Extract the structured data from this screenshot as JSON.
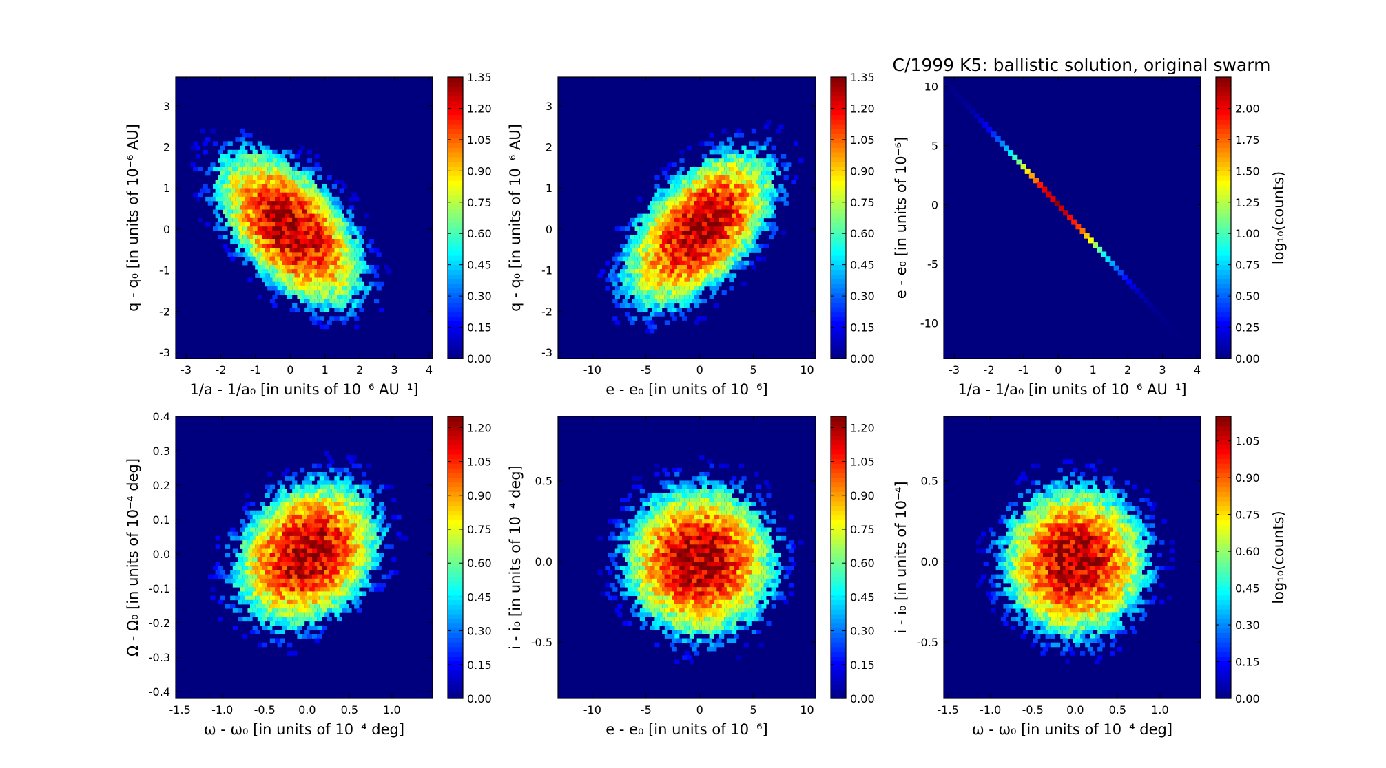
{
  "figure": {
    "title": "C/1999 K5: ballistic solution, original swarm"
  },
  "colormap": [
    "#00007f",
    "#0000ff",
    "#007fff",
    "#00ffff",
    "#7fff7f",
    "#ffff00",
    "#ff7f00",
    "#ff0000",
    "#7f0000"
  ],
  "background_color": "#00007f",
  "chart_data": [
    {
      "type": "heatmap",
      "title": "",
      "xlabel": "1/a - 1/a₀ [in units of 10⁻⁶ AU⁻¹]",
      "ylabel": "q - q₀ [in units of 10⁻⁶ AU]",
      "xlim": [
        -3.3,
        4.1
      ],
      "ylim": [
        -3.15,
        3.7
      ],
      "xticks": [
        -3,
        -2,
        -1,
        0,
        1,
        2,
        3,
        4
      ],
      "yticks": [
        -3,
        -2,
        -1,
        0,
        1,
        2,
        3
      ],
      "distribution": {
        "mean": [
          0.0,
          0.0
        ],
        "std": [
          1.0,
          0.9
        ],
        "correlation": -0.55,
        "peak_log10_counts": 1.35
      },
      "colorbar": {
        "range": [
          0.0,
          1.35
        ],
        "ticks": [
          "0.00",
          "0.15",
          "0.30",
          "0.45",
          "0.60",
          "0.75",
          "0.90",
          "1.05",
          "1.20",
          "1.35"
        ],
        "label": ""
      }
    },
    {
      "type": "heatmap",
      "title": "",
      "xlabel": "e - e₀ [in units of 10⁻⁶]",
      "ylabel": "q - q₀ [in units of 10⁻⁶ AU]",
      "xlim": [
        -13.2,
        10.8
      ],
      "ylim": [
        -3.15,
        3.7
      ],
      "xticks": [
        -10,
        -5,
        0,
        5,
        10
      ],
      "yticks": [
        -3,
        -2,
        -1,
        0,
        1,
        2,
        3
      ],
      "distribution": {
        "mean": [
          0.0,
          0.0
        ],
        "std": [
          3.3,
          0.9
        ],
        "correlation": 0.55,
        "peak_log10_counts": 1.35
      },
      "colorbar": {
        "range": [
          0.0,
          1.35
        ],
        "ticks": [
          "0.00",
          "0.15",
          "0.30",
          "0.45",
          "0.60",
          "0.75",
          "0.90",
          "1.05",
          "1.20",
          "1.35"
        ],
        "label": ""
      }
    },
    {
      "type": "heatmap",
      "title": "",
      "xlabel": "1/a - 1/a₀ [in units of 10⁻⁶ AU⁻¹]",
      "ylabel": "e - e₀ [in units of 10⁻⁶]",
      "xlim": [
        -3.3,
        4.1
      ],
      "ylim": [
        -13.0,
        10.8
      ],
      "xticks": [
        -3,
        -2,
        -1,
        0,
        1,
        2,
        3,
        4
      ],
      "yticks": [
        -10,
        -5,
        0,
        5,
        10
      ],
      "distribution": {
        "mean": [
          0.0,
          0.0
        ],
        "std": [
          1.0,
          3.2
        ],
        "correlation": -1.0,
        "line": {
          "slope": -3.2,
          "from_x": -3.2,
          "to_x": 3.5
        },
        "peak_log10_counts": 2.2
      },
      "colorbar": {
        "range": [
          0.0,
          2.25
        ],
        "ticks": [
          "0.00",
          "0.25",
          "0.50",
          "0.75",
          "1.00",
          "1.25",
          "1.50",
          "1.75",
          "2.00"
        ],
        "label": "log₁₀(counts)"
      }
    },
    {
      "type": "heatmap",
      "title": "",
      "xlabel": "ω - ω₀ [in units of 10⁻⁴ deg]",
      "ylabel": "Ω - Ω₀ [in units of 10⁻⁴ deg]",
      "xlim": [
        -1.55,
        1.48
      ],
      "ylim": [
        -0.42,
        0.4
      ],
      "xticks": [
        -1.5,
        -1.0,
        -0.5,
        0.0,
        0.5,
        1.0
      ],
      "yticks": [
        -0.4,
        -0.3,
        -0.2,
        -0.1,
        0.0,
        0.1,
        0.2,
        0.3,
        0.4
      ],
      "distribution": {
        "mean": [
          0.0,
          0.0
        ],
        "std": [
          0.4,
          0.1
        ],
        "correlation": 0.25,
        "peak_log10_counts": 1.25
      },
      "colorbar": {
        "range": [
          0.0,
          1.25
        ],
        "ticks": [
          "0.00",
          "0.15",
          "0.30",
          "0.45",
          "0.60",
          "0.75",
          "0.90",
          "1.05",
          "1.20"
        ],
        "label": ""
      }
    },
    {
      "type": "heatmap",
      "title": "",
      "xlabel": "e - e₀ [in units of 10⁻⁶]",
      "ylabel": "i - i₀ [in units of 10⁻⁴ deg]",
      "xlim": [
        -13.2,
        10.8
      ],
      "ylim": [
        -0.85,
        0.9
      ],
      "xticks": [
        -10,
        -5,
        0,
        5,
        10
      ],
      "yticks": [
        -0.5,
        0.0,
        0.5
      ],
      "distribution": {
        "mean": [
          0.0,
          0.0
        ],
        "std": [
          3.3,
          0.22
        ],
        "correlation": 0.0,
        "peak_log10_counts": 1.25
      },
      "colorbar": {
        "range": [
          0.0,
          1.25
        ],
        "ticks": [
          "0.00",
          "0.15",
          "0.30",
          "0.45",
          "0.60",
          "0.75",
          "0.90",
          "1.05",
          "1.20"
        ],
        "label": ""
      }
    },
    {
      "type": "heatmap",
      "title": "",
      "xlabel": "ω - ω₀ [in units of 10⁻⁴ deg]",
      "ylabel": "i - i₀ [in units of 10⁻⁴]",
      "xlim": [
        -1.55,
        1.48
      ],
      "ylim": [
        -0.85,
        0.9
      ],
      "xticks": [
        -1.5,
        -1.0,
        -0.5,
        0.0,
        0.5,
        1.0
      ],
      "yticks": [
        -0.5,
        0.0,
        0.5
      ],
      "distribution": {
        "mean": [
          0.0,
          0.0
        ],
        "std": [
          0.4,
          0.22
        ],
        "correlation": 0.0,
        "peak_log10_counts": 1.15
      },
      "colorbar": {
        "range": [
          0.0,
          1.15
        ],
        "ticks": [
          "0.00",
          "0.15",
          "0.30",
          "0.45",
          "0.60",
          "0.75",
          "0.90",
          "1.05"
        ],
        "label": "log₁₀(counts)"
      }
    }
  ]
}
